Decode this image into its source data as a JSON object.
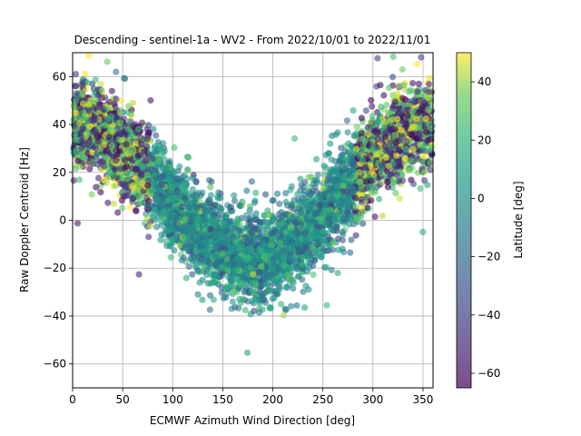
{
  "chart_data": {
    "type": "scatter",
    "title": "Descending - sentinel-1a - WV2 - From 2022/10/01 to 2022/11/01",
    "xlabel": "ECMWF Azimuth Wind Direction [deg]",
    "ylabel": "Raw Doppler Centroid [Hz]",
    "xlim": [
      0,
      360
    ],
    "ylim": [
      -70,
      70
    ],
    "xticks": [
      0,
      50,
      100,
      150,
      200,
      250,
      300,
      350
    ],
    "yticks": [
      -60,
      -40,
      -20,
      0,
      20,
      40,
      60
    ],
    "grid": true,
    "point_count": 5200,
    "colormap": "viridis",
    "point_alpha": 0.6,
    "colorbar": {
      "label": "Latitude [deg]",
      "range": [
        -65,
        50
      ],
      "ticks": [
        -60,
        -40,
        -20,
        0,
        20,
        40
      ]
    },
    "model": "sinusoidal: mean Doppler ≈ 12 + 28·cos(azimuth), spread ≈ ±12 Hz, minimum ≈ -35 Hz near 200°, maximum ≈ 65 Hz near 0°/360°"
  }
}
